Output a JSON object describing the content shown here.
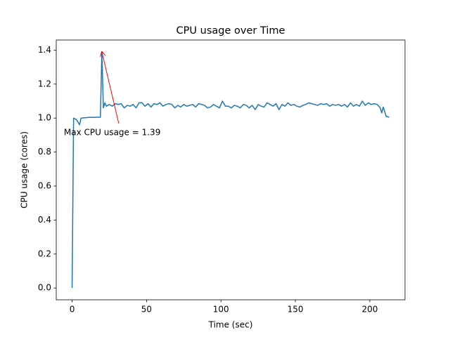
{
  "chart_data": {
    "type": "line",
    "title": "CPU usage over Time",
    "x_label": "Time (sec)",
    "y_label": "CPU usage (cores)",
    "x": [
      0,
      1,
      3,
      5,
      6,
      8,
      10,
      12,
      14,
      16,
      18,
      19,
      20,
      21,
      22,
      23,
      25,
      27,
      29,
      31,
      33,
      35,
      37,
      39,
      41,
      43,
      45,
      47,
      49,
      51,
      53,
      55,
      57,
      59,
      61,
      63,
      65,
      67,
      69,
      71,
      73,
      75,
      77,
      79,
      81,
      83,
      85,
      87,
      89,
      91,
      93,
      95,
      97,
      99,
      101,
      103,
      105,
      107,
      109,
      111,
      113,
      115,
      117,
      119,
      121,
      123,
      125,
      127,
      129,
      131,
      133,
      135,
      137,
      139,
      141,
      143,
      145,
      147,
      149,
      151,
      153,
      155,
      157,
      159,
      161,
      163,
      165,
      167,
      169,
      171,
      173,
      175,
      177,
      179,
      181,
      183,
      185,
      187,
      189,
      191,
      193,
      195,
      197,
      199,
      201,
      203,
      205,
      207,
      208,
      209,
      211,
      213
    ],
    "series": [
      {
        "name": "CPU usage",
        "color": "#1f77b4",
        "values": [
          0,
          1.0,
          0.99,
          0.96,
          1.0,
          1.002,
          1.003,
          1.005,
          1.004,
          1.005,
          1.005,
          1.005,
          1.39,
          1.06,
          1.09,
          1.07,
          1.08,
          1.07,
          1.085,
          1.08,
          1.085,
          1.06,
          1.075,
          1.07,
          1.08,
          1.06,
          1.09,
          1.09,
          1.07,
          1.085,
          1.065,
          1.085,
          1.08,
          1.09,
          1.07,
          1.08,
          1.085,
          1.08,
          1.06,
          1.075,
          1.065,
          1.08,
          1.07,
          1.075,
          1.08,
          1.065,
          1.085,
          1.08,
          1.075,
          1.06,
          1.065,
          1.08,
          1.07,
          1.06,
          1.1,
          1.07,
          1.07,
          1.06,
          1.075,
          1.07,
          1.06,
          1.08,
          1.075,
          1.06,
          1.075,
          1.05,
          1.08,
          1.07,
          1.065,
          1.09,
          1.08,
          1.07,
          1.085,
          1.05,
          1.08,
          1.07,
          1.09,
          1.075,
          1.08,
          1.07,
          1.065,
          1.075,
          1.08,
          1.09,
          1.085,
          1.08,
          1.075,
          1.085,
          1.08,
          1.085,
          1.07,
          1.08,
          1.075,
          1.08,
          1.07,
          1.08,
          1.065,
          1.09,
          1.07,
          1.08,
          1.07,
          1.1,
          1.075,
          1.09,
          1.08,
          1.085,
          1.08,
          1.06,
          1.03,
          1.065,
          1.01,
          1.005
        ]
      }
    ],
    "annotation": {
      "text": "Max CPU usage = 1.39",
      "x": 20,
      "y": 1.39,
      "color": "#ff0000"
    },
    "xlim": [
      -10.65,
      223.65
    ],
    "xticks": [
      0,
      50,
      100,
      150,
      200
    ],
    "ylim": [
      -0.0695,
      1.4595
    ],
    "yticks": [
      {
        "value": 0,
        "label": "0.0"
      },
      0.2,
      0.4,
      0.6,
      0.8,
      {
        "value": 1,
        "label": "1.0"
      },
      1.2,
      1.4
    ]
  }
}
